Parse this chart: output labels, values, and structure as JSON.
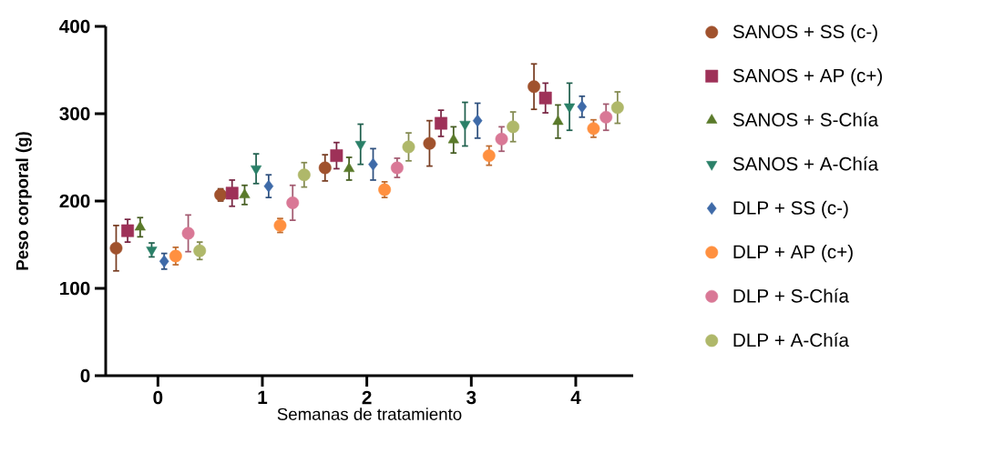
{
  "chart_data": {
    "type": "scatter",
    "xlabel": "Semanas de tratamiento",
    "ylabel": "Peso corporal (g)",
    "xlim": [
      -0.5,
      4.55
    ],
    "ylim": [
      0,
      400
    ],
    "xticks": [
      0,
      1,
      2,
      3,
      4
    ],
    "yticks": [
      0,
      100,
      200,
      300,
      400
    ],
    "grid": false,
    "legend": "right",
    "series": [
      {
        "name": "SANOS + SS (c-)",
        "color": "#a0522d",
        "marker": "circle",
        "x": [
          -0.4,
          0.6,
          1.6,
          2.6,
          3.6
        ],
        "values": [
          146,
          207,
          238,
          266,
          331
        ],
        "errors": [
          26,
          7,
          15,
          26,
          26
        ]
      },
      {
        "name": "SANOS + AP (c+)",
        "color": "#9e3158",
        "marker": "square",
        "x": [
          -0.29,
          0.71,
          1.71,
          2.71,
          3.71
        ],
        "values": [
          166,
          209,
          252,
          289,
          318
        ],
        "errors": [
          13,
          15,
          15,
          15,
          17
        ]
      },
      {
        "name": "SANOS + S-Chía",
        "color": "#5a7a2a",
        "marker": "triangle",
        "x": [
          -0.17,
          0.83,
          1.83,
          2.83,
          3.83
        ],
        "values": [
          170,
          207,
          237,
          270,
          291
        ],
        "errors": [
          11,
          11,
          13,
          15,
          19
        ]
      },
      {
        "name": "SANOS + A-Chía",
        "color": "#2a8068",
        "marker": "triangle-down",
        "x": [
          -0.06,
          0.94,
          1.94,
          2.94,
          3.94
        ],
        "values": [
          144,
          237,
          265,
          288,
          308
        ],
        "errors": [
          8,
          17,
          23,
          25,
          27
        ]
      },
      {
        "name": "DLP + SS (c-)",
        "color": "#3e6aa8",
        "marker": "diamond",
        "x": [
          0.06,
          1.06,
          2.06,
          3.06,
          4.06
        ],
        "values": [
          131,
          217,
          242,
          292,
          308
        ],
        "errors": [
          9,
          13,
          18,
          20,
          12
        ]
      },
      {
        "name": "DLP + AP (c+)",
        "color": "#ff9040",
        "marker": "circle",
        "x": [
          0.17,
          1.17,
          2.17,
          3.17,
          4.17
        ],
        "values": [
          137,
          172,
          213,
          252,
          283
        ],
        "errors": [
          10,
          8,
          9,
          11,
          10
        ]
      },
      {
        "name": "DLP + S-Chía",
        "color": "#d97896",
        "marker": "circle",
        "x": [
          0.29,
          1.29,
          2.29,
          3.29,
          4.29
        ],
        "values": [
          163,
          198,
          238,
          271,
          296
        ],
        "errors": [
          21,
          20,
          11,
          14,
          15
        ]
      },
      {
        "name": "DLP + A-Chía",
        "color": "#afb86a",
        "marker": "circle",
        "x": [
          0.4,
          1.4,
          2.4,
          3.4,
          4.4
        ],
        "values": [
          143,
          230,
          262,
          285,
          307
        ],
        "errors": [
          10,
          14,
          16,
          17,
          18
        ]
      }
    ]
  }
}
